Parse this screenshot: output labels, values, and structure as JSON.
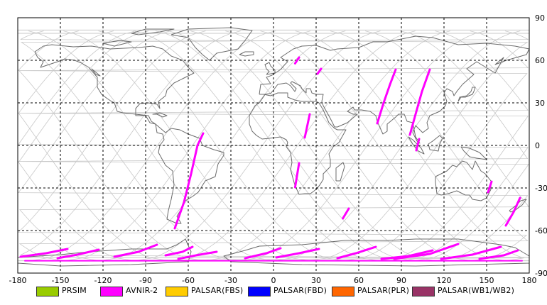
{
  "map": {
    "lon_ticks": [
      "-180",
      "-150",
      "-120",
      "-90",
      "-60",
      "-30",
      "0",
      "30",
      "60",
      "90",
      "120",
      "150",
      "180"
    ],
    "lat_ticks": [
      "90",
      "60",
      "30",
      "0",
      "-30",
      "-60",
      "-90"
    ],
    "frame_color": "#000000",
    "grid_color": "#000000",
    "coast_color": "#6b6b6b",
    "orbit_color": "#c8c8c8",
    "strip_color": "#ff00ff",
    "strips": [
      [
        [
          15.2,
          57.8
        ],
        [
          18.0,
          62.0
        ]
      ],
      [
        [
          31.0,
          50.5
        ],
        [
          33.5,
          54.0
        ]
      ],
      [
        [
          22.0,
          5.5
        ],
        [
          25.5,
          22.0
        ]
      ],
      [
        [
          15.2,
          -29.5
        ],
        [
          18.0,
          -12.5
        ]
      ],
      [
        [
          48.8,
          -51.5
        ],
        [
          53.0,
          -44.5
        ]
      ],
      [
        [
          -69.5,
          -58.5
        ],
        [
          -63.0,
          -40.0
        ],
        [
          -58.0,
          -20.0
        ],
        [
          -53.5,
          0.0
        ],
        [
          -49.5,
          8.5
        ]
      ],
      [
        [
          73.0,
          15.5
        ],
        [
          77.5,
          30.0
        ],
        [
          82.0,
          43.0
        ],
        [
          86.0,
          53.5
        ]
      ],
      [
        [
          96.0,
          7.5
        ],
        [
          100.0,
          22.0
        ],
        [
          104.5,
          38.0
        ],
        [
          110.0,
          53.5
        ]
      ],
      [
        [
          100.5,
          -3.5
        ],
        [
          102.5,
          4.5
        ]
      ],
      [
        [
          151.0,
          -33.0
        ],
        [
          153.5,
          -25.5
        ]
      ],
      [
        [
          163.5,
          -56.5
        ],
        [
          169.0,
          -47.0
        ],
        [
          173.5,
          -37.0
        ]
      ],
      [
        [
          -178.0,
          -78.5
        ],
        [
          -160.0,
          -76.0
        ],
        [
          -145.0,
          -73.0
        ]
      ],
      [
        [
          -152.0,
          -79.5
        ],
        [
          -138.0,
          -77.0
        ],
        [
          -123.0,
          -73.5
        ]
      ],
      [
        [
          -112.0,
          -78.5
        ],
        [
          -95.0,
          -75.0
        ],
        [
          -82.0,
          -70.0
        ]
      ],
      [
        [
          -76.0,
          -77.5
        ],
        [
          -64.0,
          -75.0
        ],
        [
          -57.0,
          -71.5
        ]
      ],
      [
        [
          -67.0,
          -80.0
        ],
        [
          -52.0,
          -77.0
        ],
        [
          -40.0,
          -75.0
        ]
      ],
      [
        [
          -20.0,
          -79.5
        ],
        [
          -5.0,
          -76.0
        ],
        [
          5.0,
          -72.5
        ]
      ],
      [
        [
          2.0,
          -79.0
        ],
        [
          18.0,
          -76.0
        ],
        [
          32.0,
          -73.0
        ]
      ],
      [
        [
          45.0,
          -79.5
        ],
        [
          58.0,
          -76.0
        ],
        [
          72.0,
          -71.5
        ]
      ],
      [
        [
          76.0,
          -80.0
        ],
        [
          95.0,
          -78.0
        ],
        [
          112.0,
          -74.0
        ]
      ],
      [
        [
          85.0,
          -80.0
        ],
        [
          110.0,
          -76.5
        ],
        [
          130.0,
          -69.5
        ]
      ],
      [
        [
          118.0,
          -80.0
        ],
        [
          140.0,
          -77.0
        ],
        [
          160.0,
          -71.5
        ]
      ],
      [
        [
          145.0,
          -80.0
        ],
        [
          162.0,
          -77.5
        ],
        [
          172.0,
          -74.0
        ]
      ],
      [
        [
          -175.0,
          -81.3
        ],
        [
          175.0,
          -81.3
        ]
      ]
    ]
  },
  "legend": [
    {
      "label": "PRSIM",
      "color": "#99cc00"
    },
    {
      "label": "AVNIR-2",
      "color": "#ff00ff"
    },
    {
      "label": "PALSAR(FBS)",
      "color": "#ffcc00"
    },
    {
      "label": "PALSAR(FBD)",
      "color": "#0000ff"
    },
    {
      "label": "PALSAR(PLR)",
      "color": "#ff6600"
    },
    {
      "label": "PALSAR(WB1/WB2)",
      "color": "#993366"
    }
  ]
}
